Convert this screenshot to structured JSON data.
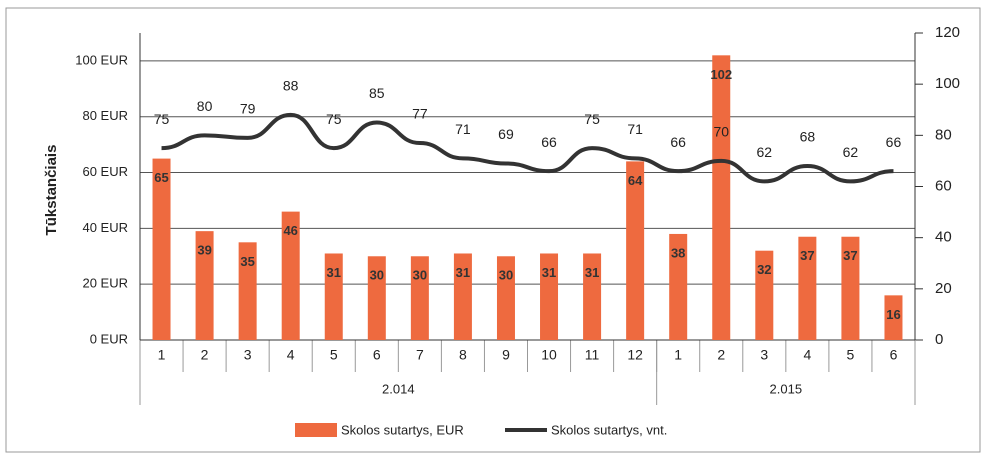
{
  "chart_data": {
    "type": "bar_line",
    "y_label": "Tūkstančiais",
    "categories": [
      "1",
      "2",
      "3",
      "4",
      "5",
      "6",
      "7",
      "8",
      "9",
      "10",
      "11",
      "12",
      "1",
      "2",
      "3",
      "4",
      "5",
      "6"
    ],
    "x_groups": [
      "2.014",
      "2.015"
    ],
    "x_group_sizes": [
      12,
      6
    ],
    "series": [
      {
        "name": "Skolos sutartys, EUR",
        "color": "#ee6a3f",
        "kind": "bar",
        "values": [
          65,
          39,
          35,
          46,
          31,
          30,
          30,
          31,
          30,
          31,
          31,
          64,
          38,
          102,
          32,
          37,
          37,
          16
        ]
      },
      {
        "name": "Skolos sutartys, vnt.",
        "color": "#333333",
        "kind": "line",
        "axis": "y2",
        "values": [
          75,
          80,
          79,
          88,
          75,
          85,
          77,
          71,
          69,
          66,
          75,
          71,
          66,
          70,
          62,
          68,
          62,
          66
        ]
      }
    ],
    "ylim": [
      0,
      110
    ],
    "yticks": [
      {
        "value": 0,
        "label": "0 EUR"
      },
      {
        "value": 20,
        "label": "20 EUR"
      },
      {
        "value": 40,
        "label": "40 EUR"
      },
      {
        "value": 60,
        "label": "60 EUR"
      },
      {
        "value": 80,
        "label": "80 EUR"
      },
      {
        "value": 100,
        "label": "100 EUR"
      }
    ],
    "y2lim": [
      0,
      120
    ],
    "y2ticks": [
      0,
      20,
      40,
      60,
      80,
      100,
      120
    ],
    "grid": true
  }
}
